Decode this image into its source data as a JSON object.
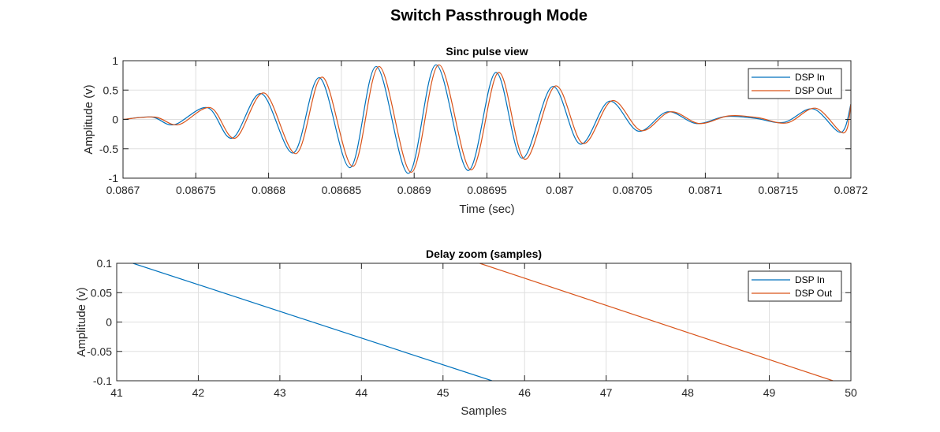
{
  "figure": {
    "title": "Switch Passthrough Mode"
  },
  "chart_data": [
    {
      "type": "line",
      "title": "Sinc pulse view",
      "xlabel": "Time (sec)",
      "ylabel": "Amplitude (v)",
      "xlim": [
        0.0867,
        0.0872
      ],
      "ylim": [
        -1,
        1
      ],
      "xticks": [
        0.0867,
        0.08675,
        0.0868,
        0.08685,
        0.0869,
        0.08695,
        0.087,
        0.08705,
        0.0871,
        0.08715,
        0.0872
      ],
      "xtick_labels": [
        "0.0867",
        "0.08675",
        "0.0868",
        "0.08685",
        "0.0869",
        "0.08695",
        "0.087",
        "0.08705",
        "0.0871",
        "0.08715",
        "0.0872"
      ],
      "yticks": [
        -1,
        -0.5,
        0,
        0.5,
        1
      ],
      "ytick_labels": [
        "-1",
        "-0.5",
        "0",
        "0.5",
        "1"
      ],
      "grid": true,
      "legend_position": "top-right",
      "series": [
        {
          "name": "DSP In",
          "color": "#0072BD",
          "x": [
            0.0867,
            0.08672,
            0.086735,
            0.086758,
            0.086775,
            0.086795,
            0.086817,
            0.086835,
            0.086856,
            0.086874,
            0.086896,
            0.086915,
            0.086937,
            0.086956,
            0.086974,
            0.086995,
            0.087014,
            0.087034,
            0.087054,
            0.087074,
            0.087094,
            0.087114,
            0.087134,
            0.087154,
            0.087174,
            0.087193,
            0.0872
          ],
          "y": [
            0,
            0.04,
            -0.09,
            0.2,
            -0.32,
            0.44,
            -0.57,
            0.71,
            -0.82,
            0.9,
            -0.92,
            0.93,
            -0.87,
            0.8,
            -0.66,
            0.56,
            -0.42,
            0.31,
            -0.2,
            0.13,
            -0.07,
            0.05,
            0.02,
            -0.05,
            0.18,
            -0.22,
            0.26
          ]
        },
        {
          "name": "DSP Out",
          "color": "#D95319",
          "x": [
            0.0867,
            0.086722,
            0.086738,
            0.08676,
            0.086777,
            0.086797,
            0.086819,
            0.086837,
            0.086858,
            0.086876,
            0.086898,
            0.086917,
            0.086939,
            0.086958,
            0.086976,
            0.086997,
            0.087016,
            0.087036,
            0.087056,
            0.087076,
            0.087096,
            0.087116,
            0.087136,
            0.087156,
            0.087176,
            0.087195,
            0.0872
          ],
          "y": [
            0,
            0.04,
            -0.09,
            0.2,
            -0.32,
            0.45,
            -0.58,
            0.72,
            -0.8,
            0.9,
            -0.9,
            0.93,
            -0.86,
            0.8,
            -0.68,
            0.57,
            -0.41,
            0.32,
            -0.19,
            0.13,
            -0.07,
            0.06,
            0.03,
            -0.06,
            0.19,
            -0.23,
            0.26
          ]
        }
      ]
    },
    {
      "type": "line",
      "title": "Delay zoom (samples)",
      "xlabel": "Samples",
      "ylabel": "Amplitude (v)",
      "xlim": [
        41,
        50
      ],
      "ylim": [
        -0.1,
        0.1
      ],
      "xticks": [
        41,
        42,
        43,
        44,
        45,
        46,
        47,
        48,
        49,
        50
      ],
      "xtick_labels": [
        "41",
        "42",
        "43",
        "44",
        "45",
        "46",
        "47",
        "48",
        "49",
        "50"
      ],
      "yticks": [
        -0.1,
        -0.05,
        0,
        0.05,
        0.1
      ],
      "ytick_labels": [
        "-0.1",
        "-0.05",
        "0",
        "0.05",
        "0.1"
      ],
      "grid": true,
      "legend_position": "top-right",
      "series": [
        {
          "name": "DSP In",
          "color": "#0072BD",
          "x": [
            41.2,
            45.6
          ],
          "y": [
            0.1,
            -0.1
          ]
        },
        {
          "name": "DSP Out",
          "color": "#D95319",
          "x": [
            45.45,
            49.78
          ],
          "y": [
            0.1,
            -0.1
          ]
        }
      ]
    }
  ]
}
